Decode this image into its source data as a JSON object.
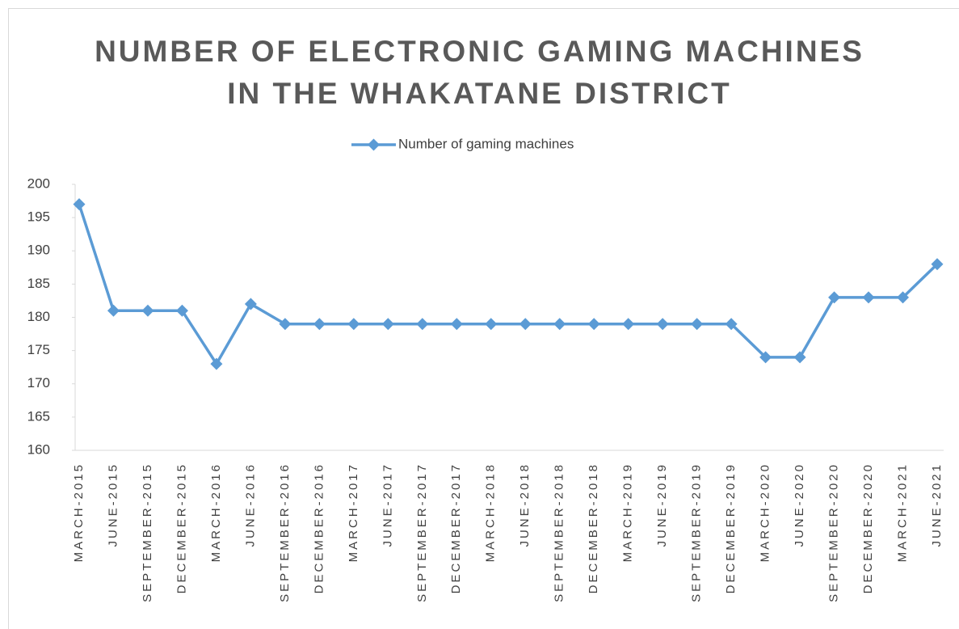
{
  "chart_data": {
    "type": "line",
    "title": "NUMBER OF ELECTRONIC GAMING MACHINES IN THE WHAKATANE DISTRICT",
    "categories": [
      "MARCH-2015",
      "JUNE-2015",
      "SEPTEMBER-2015",
      "DECEMBER-2015",
      "MARCH-2016",
      "JUNE-2016",
      "SEPTEMBER-2016",
      "DECEMBER-2016",
      "MARCH-2017",
      "JUNE-2017",
      "SEPTEMBER-2017",
      "DECEMBER-2017",
      "MARCH-2018",
      "JUNE-2018",
      "SEPTEMBER-2018",
      "DECEMBER-2018",
      "MARCH-2019",
      "JUNE-2019",
      "SEPTEMBER-2019",
      "DECEMBER-2019",
      "MARCH-2020",
      "JUNE-2020",
      "SEPTEMBER-2020",
      "DECEMBER-2020",
      "MARCH-2021",
      "JUNE-2021"
    ],
    "series": [
      {
        "name": "Number of gaming machines",
        "color": "#5b9bd5",
        "values": [
          197,
          181,
          181,
          181,
          173,
          182,
          179,
          179,
          179,
          179,
          179,
          179,
          179,
          179,
          179,
          179,
          179,
          179,
          179,
          179,
          174,
          174,
          183,
          183,
          183,
          188
        ]
      }
    ],
    "ylim": [
      160,
      200
    ],
    "yticks": [
      160,
      165,
      170,
      175,
      180,
      185,
      190,
      195,
      200
    ],
    "legend": "top",
    "grid": false
  }
}
